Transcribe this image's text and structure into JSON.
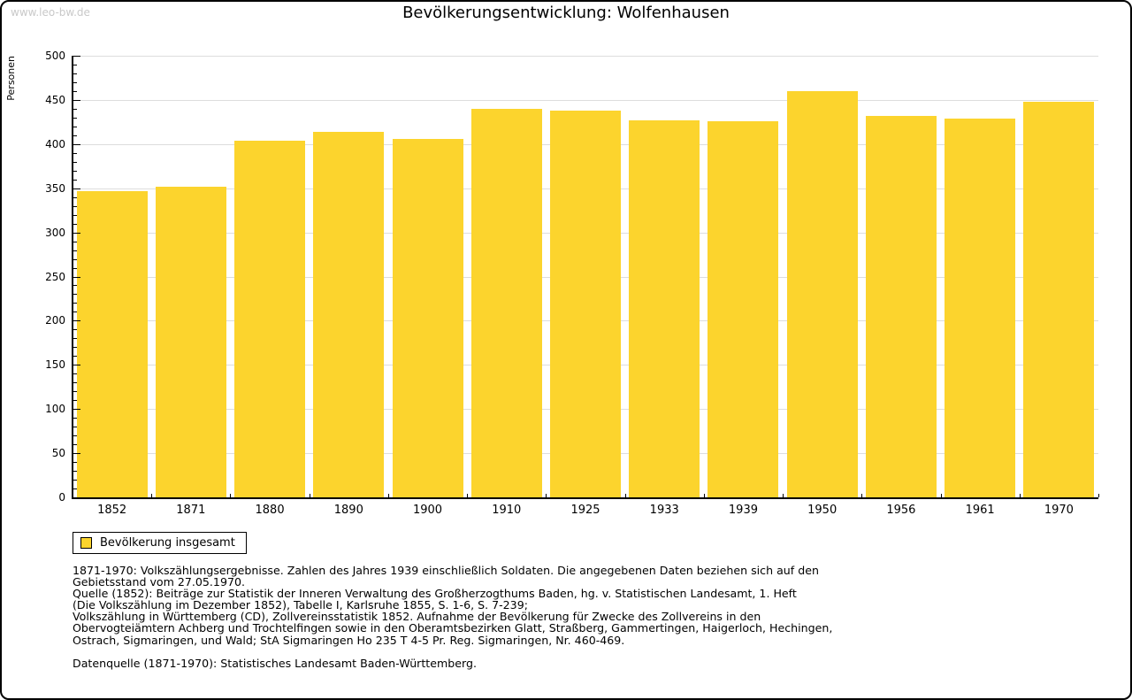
{
  "watermark": "www.leo-bw.de",
  "header": {
    "title": "Bevölkerungsentwicklung: Wolfenhausen"
  },
  "chart_data": {
    "type": "bar",
    "title": "Bevölkerungsentwicklung: Wolfenhausen",
    "xlabel": "",
    "ylabel": "Personen",
    "categories": [
      "1852",
      "1871",
      "1880",
      "1890",
      "1900",
      "1910",
      "1925",
      "1933",
      "1939",
      "1950",
      "1956",
      "1961",
      "1970"
    ],
    "values": [
      347,
      352,
      404,
      414,
      406,
      440,
      438,
      427,
      426,
      460,
      432,
      429,
      448
    ],
    "ylim": [
      0,
      500
    ],
    "ytick_step": 50,
    "yminor_step": 10,
    "grid": true,
    "legend_entries": [
      "Bevölkerung insgesamt"
    ],
    "legend_position": "bottom-left",
    "bar_color": "#FCD42D",
    "gridline_color": "#dddddd"
  },
  "legend": {
    "label": "Bevölkerung insgesamt",
    "swatch_color": "#FCD42D"
  },
  "footnotes": [
    "1871-1970: Volkszählungsergebnisse. Zahlen des Jahres 1939 einschließlich Soldaten. Die angegebenen Daten beziehen sich auf den",
    "Gebietsstand vom 27.05.1970.",
    "Quelle (1852): Beiträge zur Statistik der Inneren Verwaltung des Großherzogthums Baden, hg. v. Statistischen Landesamt, 1. Heft",
    "(Die Volkszählung im Dezember 1852), Tabelle I, Karlsruhe 1855, S. 1-6, S. 7-239;",
    "Volkszählung in Württemberg (CD), Zollvereinsstatistik 1852. Aufnahme der Bevölkerung für Zwecke des Zollvereins in den",
    "Obervogteiämtern Achberg und Trochtelfingen sowie in den Oberamtsbezirken Glatt, Straßberg, Gammertingen, Haigerloch, Hechingen,",
    "Ostrach, Sigmaringen, und Wald; StA Sigmaringen Ho 235 T 4-5 Pr. Reg. Sigmaringen, Nr. 460-469."
  ],
  "datasource": "Datenquelle (1871-1970): Statistisches Landesamt Baden-Württemberg."
}
